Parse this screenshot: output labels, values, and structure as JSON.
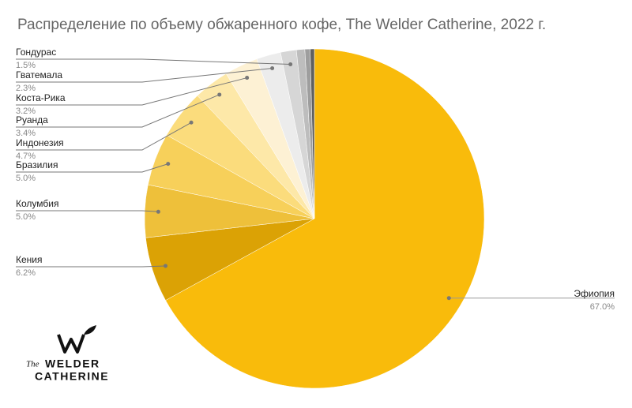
{
  "chart_data": {
    "type": "pie",
    "title": "Распределение по объему обжаренного кофе, The Welder Catherine, 2022 г.",
    "categories": [
      "Эфиопия",
      "Кения",
      "Колумбия",
      "Бразилия",
      "Индонезия",
      "Руанда",
      "Коста-Рика",
      "Гватемала",
      "Гондурас",
      null,
      null,
      null
    ],
    "values": [
      67.0,
      6.2,
      5.0,
      5.0,
      4.7,
      3.4,
      3.2,
      2.3,
      1.5,
      0.8,
      0.5,
      0.4
    ],
    "value_labels": [
      "67.0%",
      "6.2%",
      "5.0%",
      "5.0%",
      "4.7%",
      "3.4%",
      "3.2%",
      "2.3%",
      "1.5%",
      null,
      null,
      null
    ],
    "colors": [
      "#f9bb0b",
      "#dba205",
      "#eec03a",
      "#f7d05a",
      "#fbdc7c",
      "#fde8a8",
      "#fdf1d4",
      "#ececec",
      "#d6d6d6",
      "#bdbdbd",
      "#9e9e9e",
      "#5f5f5f"
    ]
  },
  "logo": {
    "small": "The",
    "line1": "WELDER",
    "line2": "CATHERINE"
  }
}
